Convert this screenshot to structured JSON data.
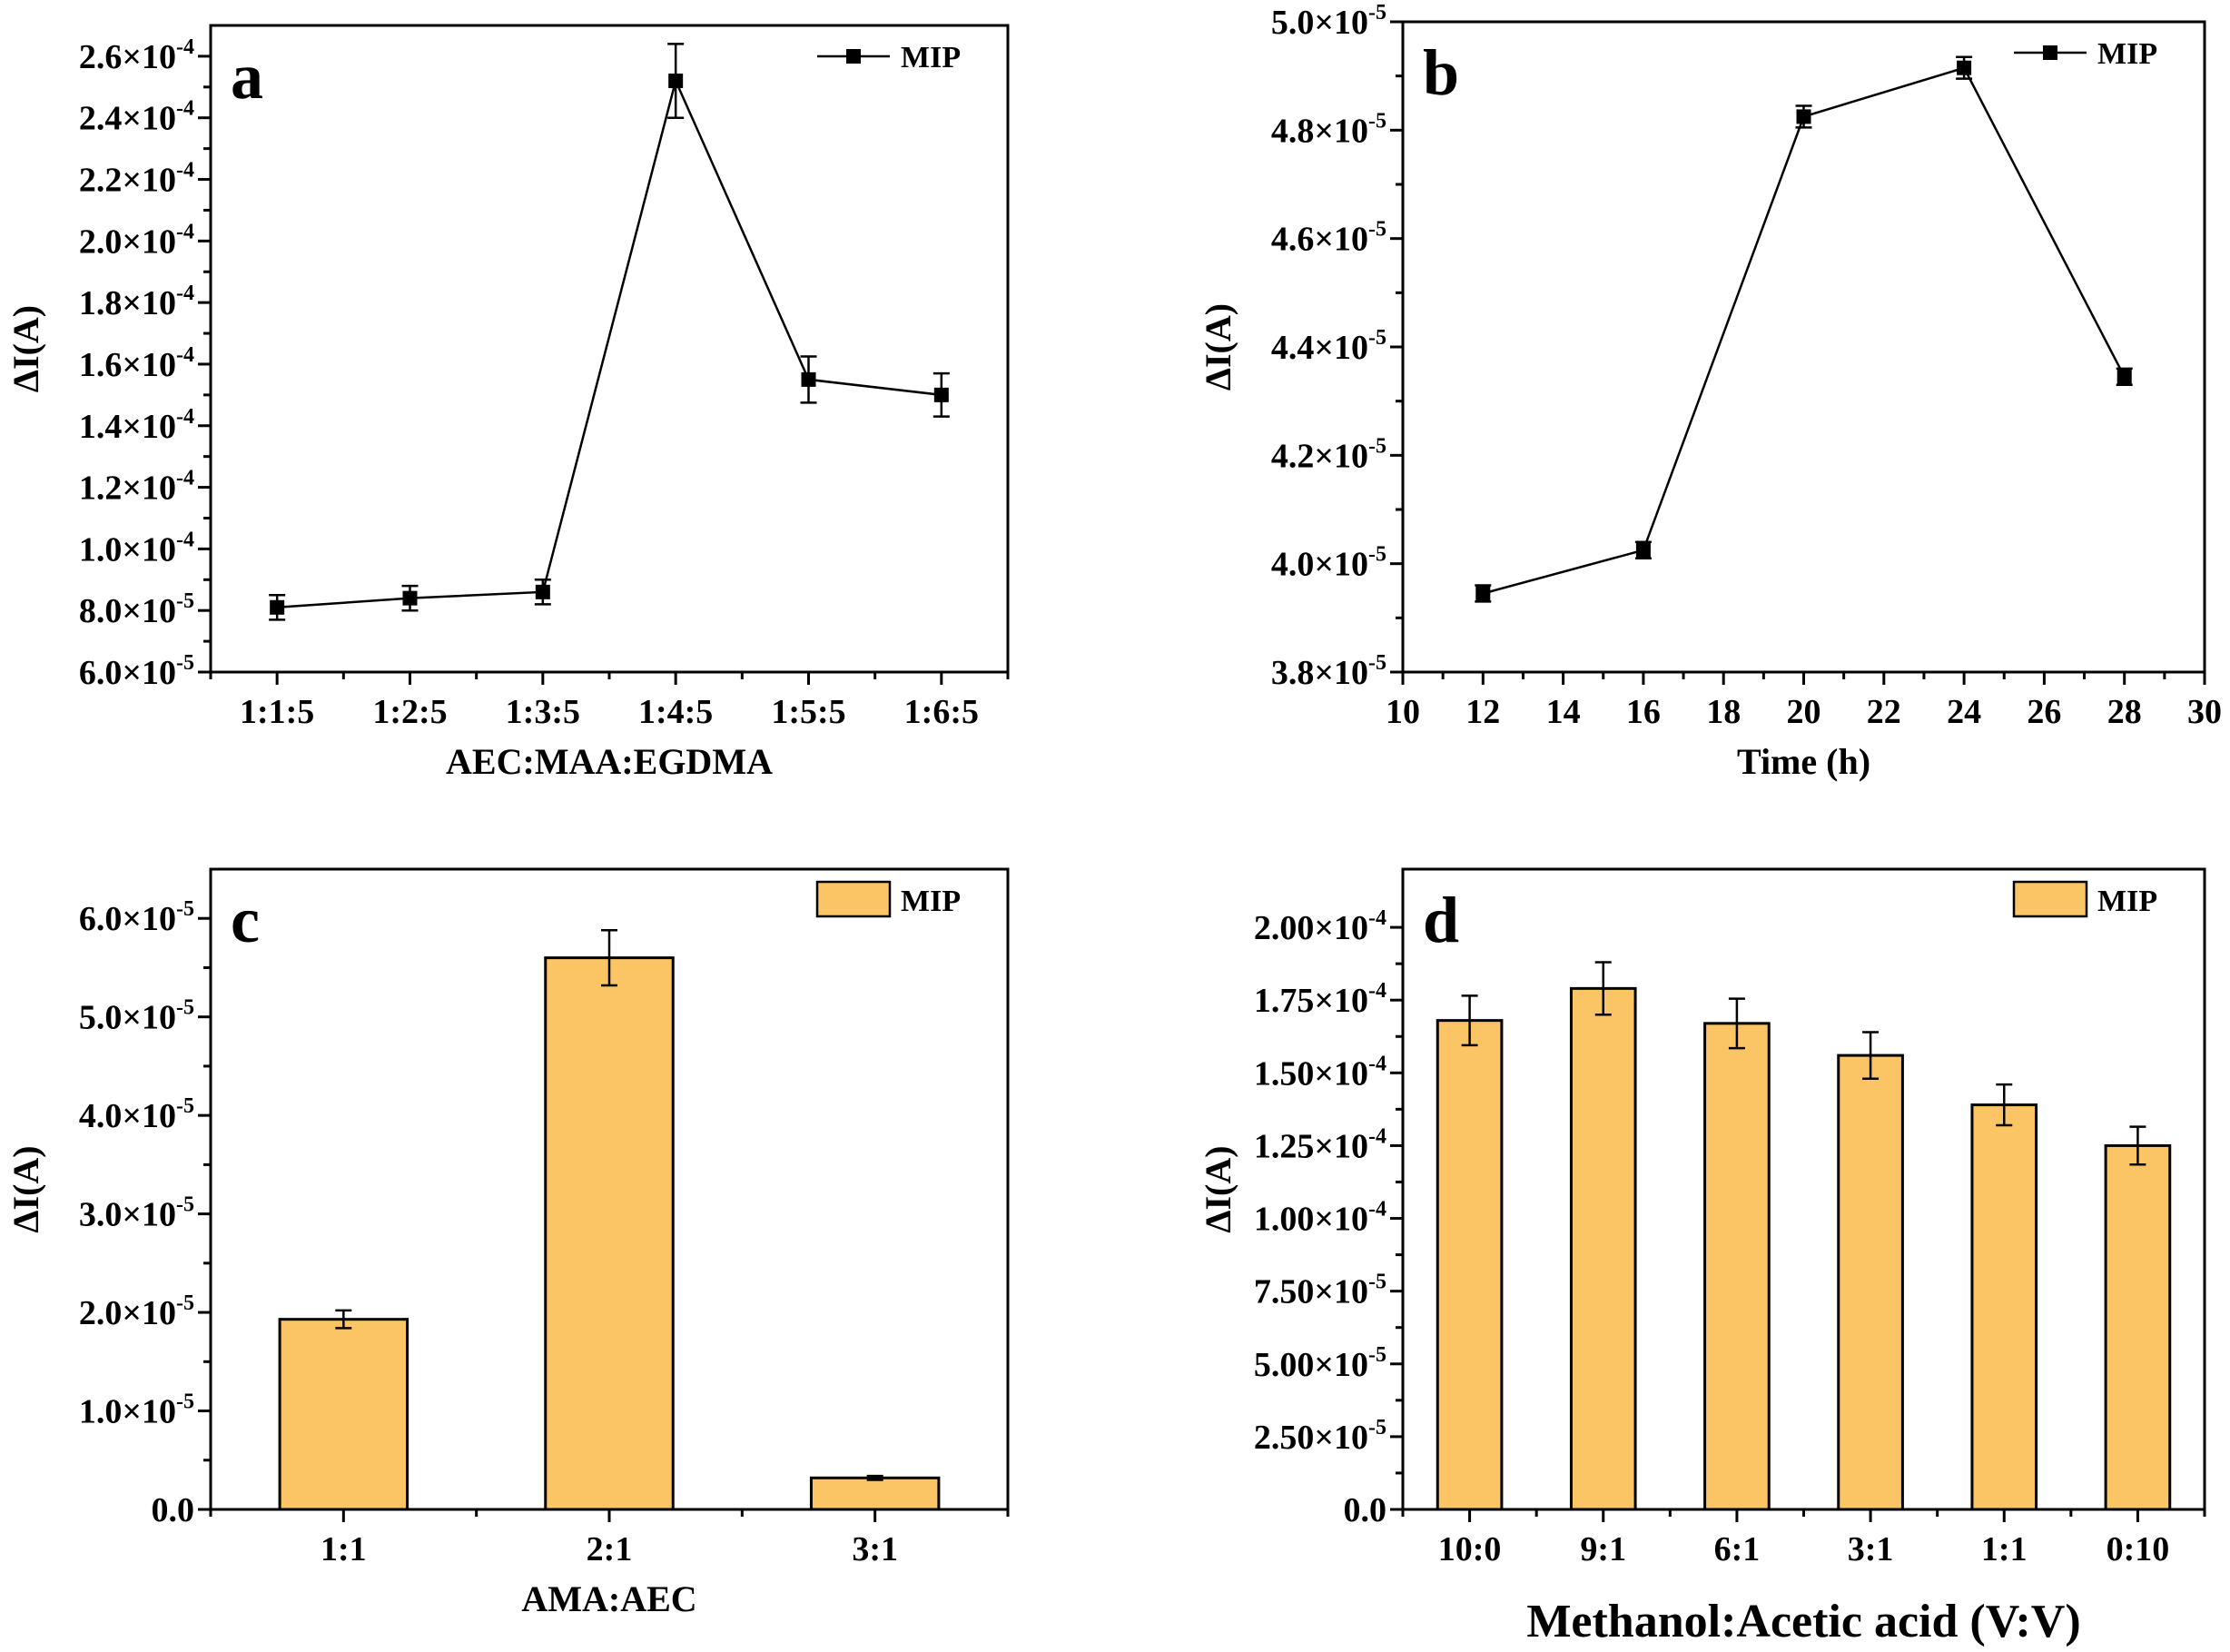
{
  "colors": {
    "bar_fill": "#FBC566",
    "line": "#000000",
    "marker": "#000000"
  },
  "chart_data": [
    {
      "panel": "a",
      "type": "line",
      "categories": [
        "1:1:5",
        "1:2:5",
        "1:3:5",
        "1:4:5",
        "1:5:5",
        "1:6:5"
      ],
      "series": [
        {
          "name": "MIP",
          "values": [
            8.1e-05,
            8.4e-05,
            8.6e-05,
            0.000252,
            0.000155,
            0.00015
          ],
          "errors": [
            4e-06,
            4e-06,
            4e-06,
            1.2e-05,
            7.5e-06,
            7e-06
          ]
        }
      ],
      "xlabel": "AEC:MAA:EGDMA",
      "ylabel": "ΔI(A)",
      "ylim": [
        6e-05,
        0.00027
      ],
      "yticks": [
        {
          "value": 6e-05,
          "mantissa": "6.0×10",
          "exp": "-5"
        },
        {
          "value": 8e-05,
          "mantissa": "8.0×10",
          "exp": "-5"
        },
        {
          "value": 0.0001,
          "mantissa": "1.0×10",
          "exp": "-4"
        },
        {
          "value": 0.00012,
          "mantissa": "1.2×10",
          "exp": "-4"
        },
        {
          "value": 0.00014,
          "mantissa": "1.4×10",
          "exp": "-4"
        },
        {
          "value": 0.00016,
          "mantissa": "1.6×10",
          "exp": "-4"
        },
        {
          "value": 0.00018,
          "mantissa": "1.8×10",
          "exp": "-4"
        },
        {
          "value": 0.0002,
          "mantissa": "2.0×10",
          "exp": "-4"
        },
        {
          "value": 0.00022,
          "mantissa": "2.2×10",
          "exp": "-4"
        },
        {
          "value": 0.00024,
          "mantissa": "2.4×10",
          "exp": "-4"
        },
        {
          "value": 0.00026,
          "mantissa": "2.6×10",
          "exp": "-4"
        }
      ],
      "legend": "top-right",
      "grid": false
    },
    {
      "panel": "b",
      "type": "line",
      "x": [
        12,
        16,
        20,
        24,
        28
      ],
      "series": [
        {
          "name": "MIP",
          "values": [
            3.945e-05,
            4.025e-05,
            4.825e-05,
            4.915e-05,
            4.345e-05
          ],
          "errors": [
            1.5e-07,
            1.5e-07,
            2e-07,
            2e-07,
            1.5e-07
          ]
        }
      ],
      "xlabel": "Time (h)",
      "ylabel": "ΔI(A)",
      "xlim": [
        10,
        30
      ],
      "xticks": [
        10,
        12,
        14,
        16,
        18,
        20,
        22,
        24,
        26,
        28,
        30
      ],
      "ylim": [
        3.8e-05,
        5e-05
      ],
      "yticks": [
        {
          "value": 3.8e-05,
          "mantissa": "3.8×10",
          "exp": "-5"
        },
        {
          "value": 4e-05,
          "mantissa": "4.0×10",
          "exp": "-5"
        },
        {
          "value": 4.2e-05,
          "mantissa": "4.2×10",
          "exp": "-5"
        },
        {
          "value": 4.4e-05,
          "mantissa": "4.4×10",
          "exp": "-5"
        },
        {
          "value": 4.6e-05,
          "mantissa": "4.6×10",
          "exp": "-5"
        },
        {
          "value": 4.8e-05,
          "mantissa": "4.8×10",
          "exp": "-5"
        },
        {
          "value": 5e-05,
          "mantissa": "5.0×10",
          "exp": "-5"
        }
      ],
      "legend": "top-right",
      "grid": false
    },
    {
      "panel": "c",
      "type": "bar",
      "categories": [
        "1:1",
        "2:1",
        "3:1"
      ],
      "series": [
        {
          "name": "MIP",
          "values": [
            1.93e-05,
            5.6e-05,
            3.2e-06
          ],
          "errors": [
            9e-07,
            2.8e-06,
            2e-07
          ]
        }
      ],
      "xlabel": "AMA:AEC",
      "ylabel": "ΔI(A)",
      "ylim": [
        0,
        6.5e-05
      ],
      "yticks": [
        {
          "value": 0,
          "mantissa": "0.0",
          "exp": ""
        },
        {
          "value": 1e-05,
          "mantissa": "1.0×10",
          "exp": "-5"
        },
        {
          "value": 2e-05,
          "mantissa": "2.0×10",
          "exp": "-5"
        },
        {
          "value": 3e-05,
          "mantissa": "3.0×10",
          "exp": "-5"
        },
        {
          "value": 4e-05,
          "mantissa": "4.0×10",
          "exp": "-5"
        },
        {
          "value": 5e-05,
          "mantissa": "5.0×10",
          "exp": "-5"
        },
        {
          "value": 6e-05,
          "mantissa": "6.0×10",
          "exp": "-5"
        }
      ],
      "legend": "top-right",
      "grid": false
    },
    {
      "panel": "d",
      "type": "bar",
      "categories": [
        "10:0",
        "9:1",
        "6:1",
        "3:1",
        "1:1",
        "0:10"
      ],
      "series": [
        {
          "name": "MIP",
          "values": [
            0.000168,
            0.000179,
            0.000167,
            0.000156,
            0.000139,
            0.000125
          ],
          "errors": [
            8.5e-06,
            9e-06,
            8.5e-06,
            8e-06,
            7e-06,
            6.5e-06
          ]
        }
      ],
      "xlabel": "Methanol:Acetic acid (V:V)",
      "ylabel": "ΔI(A)",
      "ylim": [
        0,
        0.00022
      ],
      "yticks": [
        {
          "value": 0,
          "mantissa": "0.0",
          "exp": ""
        },
        {
          "value": 2.5e-05,
          "mantissa": "2.50×10",
          "exp": "-5"
        },
        {
          "value": 5e-05,
          "mantissa": "5.00×10",
          "exp": "-5"
        },
        {
          "value": 7.5e-05,
          "mantissa": "7.50×10",
          "exp": "-5"
        },
        {
          "value": 0.0001,
          "mantissa": "1.00×10",
          "exp": "-4"
        },
        {
          "value": 0.000125,
          "mantissa": "1.25×10",
          "exp": "-4"
        },
        {
          "value": 0.00015,
          "mantissa": "1.50×10",
          "exp": "-4"
        },
        {
          "value": 0.000175,
          "mantissa": "1.75×10",
          "exp": "-4"
        },
        {
          "value": 0.0002,
          "mantissa": "2.00×10",
          "exp": "-4"
        }
      ],
      "legend": "top-right",
      "grid": false
    }
  ]
}
